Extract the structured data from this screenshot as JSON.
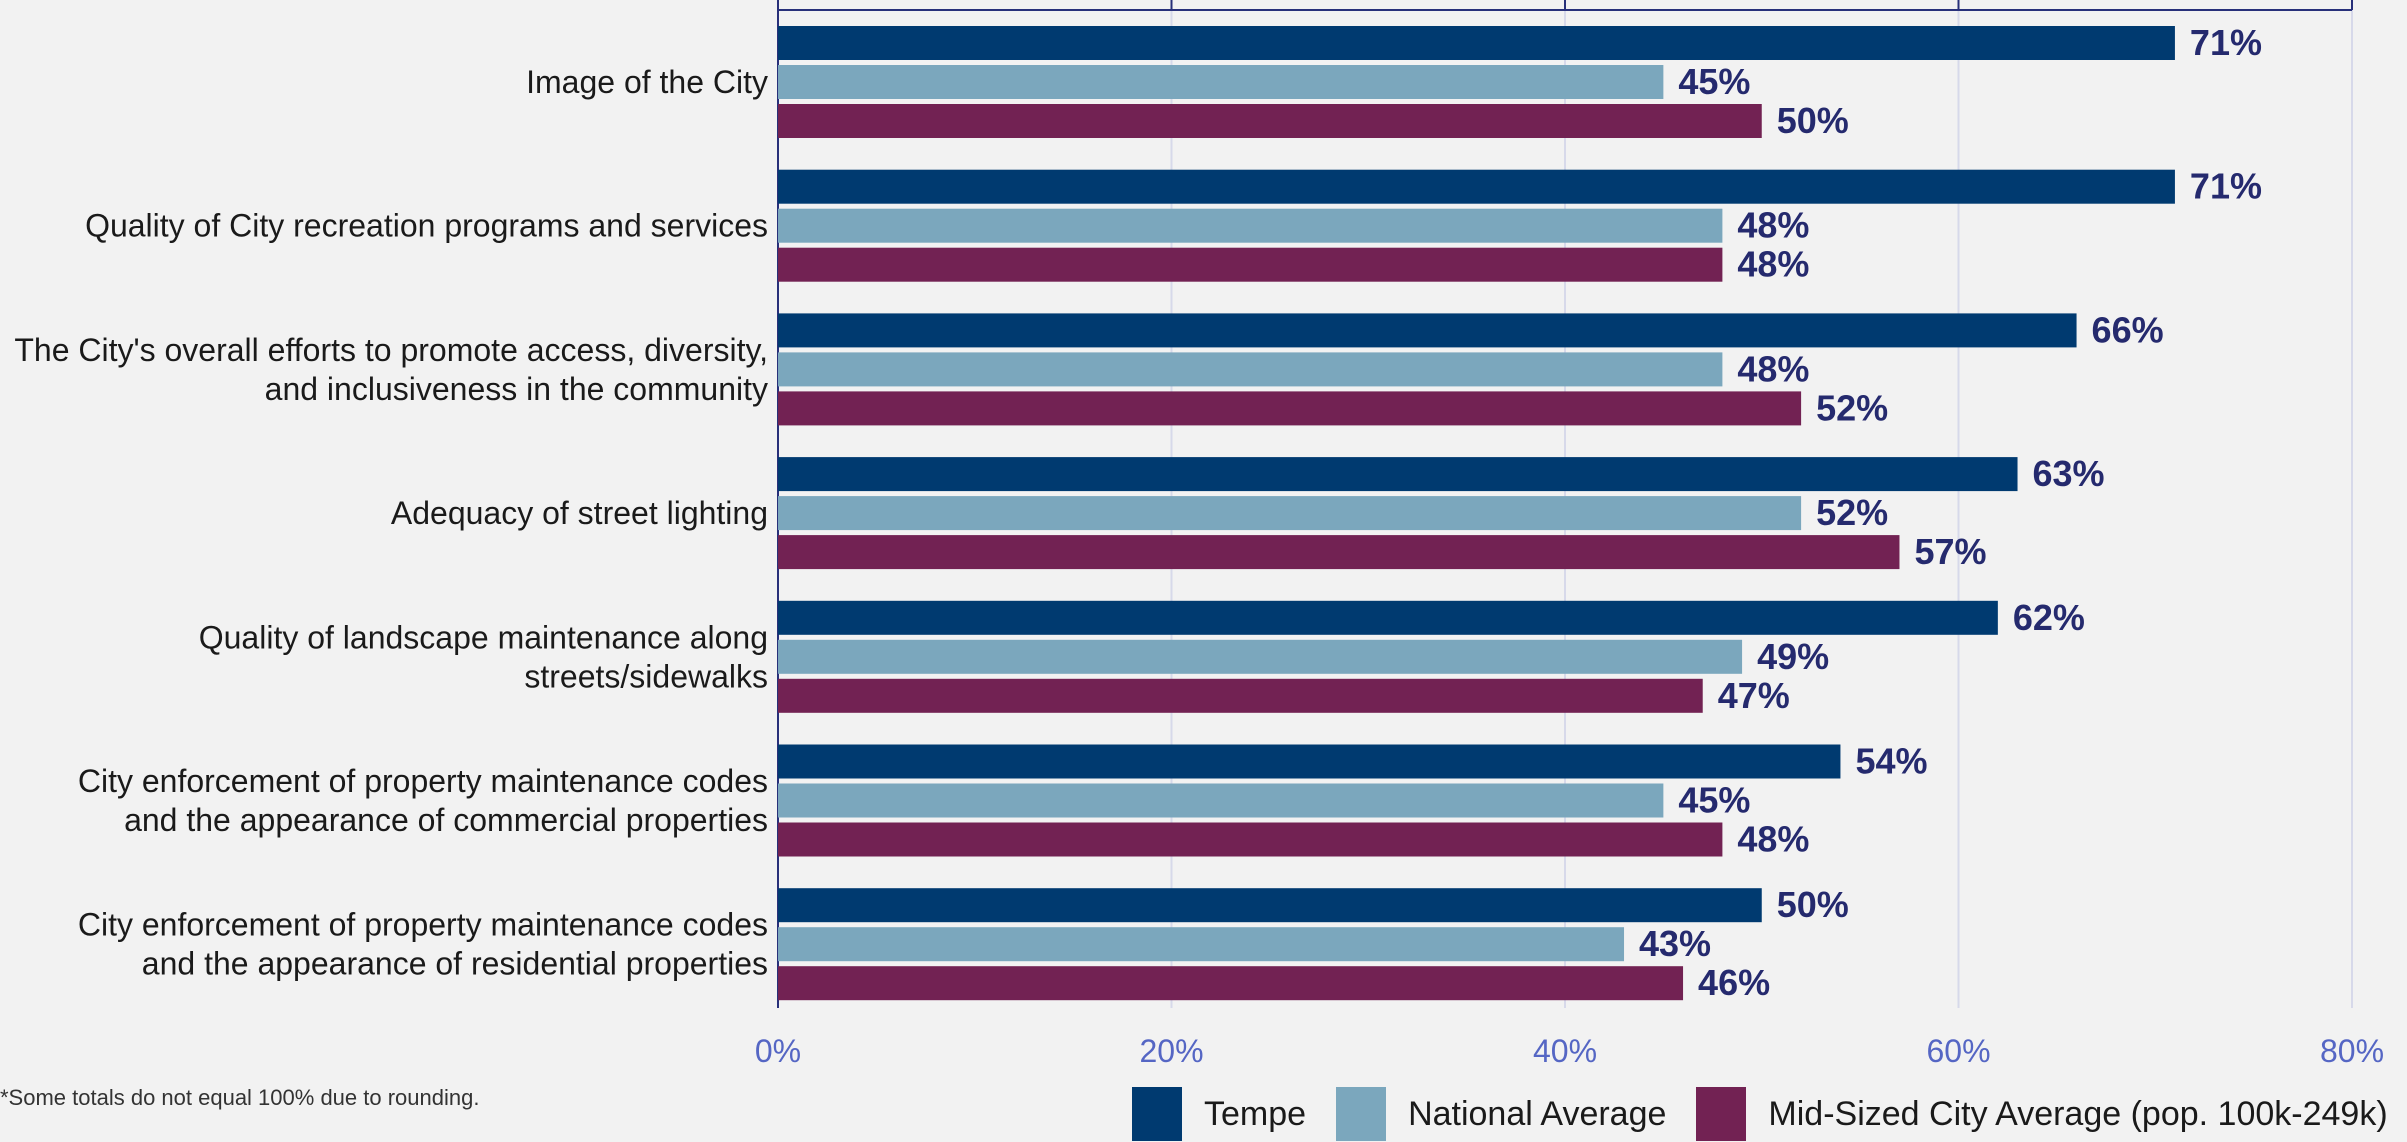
{
  "chart_data": {
    "type": "bar",
    "orientation": "horizontal",
    "categories": [
      "Image of the City",
      "Quality of City recreation programs and services",
      "The City's overall efforts to promote access, diversity, and inclusiveness in the community",
      "Adequacy of street lighting",
      "Quality of landscape maintenance along streets/sidewalks",
      "City enforcement of property maintenance codes and the appearance of commercial properties",
      "City enforcement of property maintenance codes and the appearance of residential properties"
    ],
    "category_lines": [
      [
        "Image of the City"
      ],
      [
        "Quality of City recreation programs and services"
      ],
      [
        "The City's overall efforts to promote access, diversity,",
        "and inclusiveness in the community"
      ],
      [
        "Adequacy of street lighting"
      ],
      [
        "Quality of landscape maintenance along",
        "streets/sidewalks"
      ],
      [
        "City enforcement of property maintenance codes",
        "and the appearance of commercial properties"
      ],
      [
        "City enforcement of property maintenance codes",
        "and the appearance of residential properties"
      ]
    ],
    "series": [
      {
        "name": "Tempe",
        "color": "#003a70",
        "values": [
          71,
          71,
          66,
          63,
          62,
          54,
          50
        ]
      },
      {
        "name": "National Average",
        "color": "#7ba7bd",
        "values": [
          45,
          48,
          48,
          52,
          49,
          45,
          43
        ]
      },
      {
        "name": "Mid-Sized City Average (pop. 100k-249k)",
        "color": "#722253",
        "values": [
          50,
          48,
          52,
          57,
          47,
          48,
          46
        ]
      }
    ],
    "value_labels": [
      [
        "71%",
        "71%",
        "66%",
        "63%",
        "62%",
        "54%",
        "50%"
      ],
      [
        "45%",
        "48%",
        "48%",
        "52%",
        "49%",
        "45%",
        "43%"
      ],
      [
        "50%",
        "48%",
        "52%",
        "57%",
        "47%",
        "48%",
        "46%"
      ]
    ],
    "xlim": [
      0,
      80
    ],
    "x_ticks": [
      0,
      20,
      40,
      60,
      80
    ],
    "x_tick_labels": [
      "0%",
      "20%",
      "40%",
      "60%",
      "80%"
    ],
    "grid": true,
    "legend_position": "bottom-right",
    "footnote": "*Some totals do not equal 100% due to rounding."
  },
  "colors": {
    "value_label": "#252a6e",
    "tick_label": "#5566c4",
    "gridline": "#d7d9ea",
    "axis": "#28307a",
    "category_label": "#1a1a1a"
  }
}
